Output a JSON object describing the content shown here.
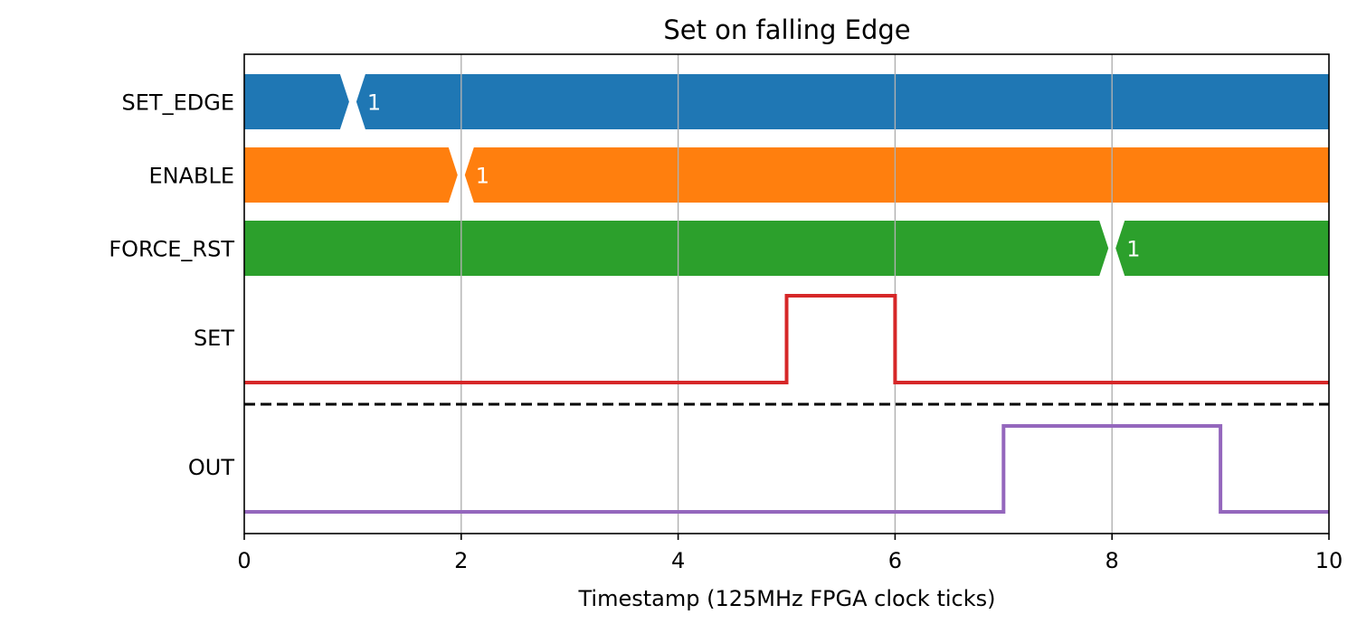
{
  "chart_data": {
    "type": "timing-diagram",
    "title": "Set on falling Edge",
    "xlabel": "Timestamp (125MHz FPGA clock ticks)",
    "xlim": [
      0,
      10
    ],
    "xticks": [
      0,
      2,
      4,
      6,
      8,
      10
    ],
    "grid": "x",
    "bus_signals": [
      {
        "name": "SET_EDGE",
        "color": "#1f77b4",
        "transitions": [
          {
            "t": 1,
            "value": "1"
          }
        ]
      },
      {
        "name": "ENABLE",
        "color": "#ff7f0e",
        "transitions": [
          {
            "t": 2,
            "value": "1"
          }
        ]
      },
      {
        "name": "FORCE_RST",
        "color": "#2ca02c",
        "transitions": [
          {
            "t": 8,
            "value": "1"
          }
        ]
      }
    ],
    "digital_signals": [
      {
        "name": "SET",
        "color": "#d62728",
        "steps": [
          {
            "t": 0,
            "v": 0
          },
          {
            "t": 5,
            "v": 1
          },
          {
            "t": 6,
            "v": 0
          },
          {
            "t": 10,
            "v": 0
          }
        ]
      },
      {
        "name": "OUT",
        "color": "#9467bd",
        "steps": [
          {
            "t": 0,
            "v": 0
          },
          {
            "t": 7,
            "v": 1
          },
          {
            "t": 9,
            "v": 0
          },
          {
            "t": 10,
            "v": 0
          }
        ]
      }
    ],
    "separator": "dashed line between SET and OUT"
  }
}
